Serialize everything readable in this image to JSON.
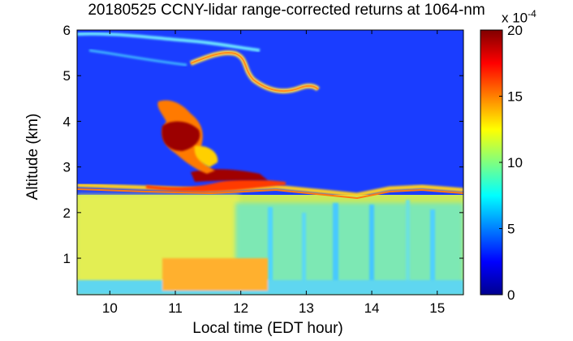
{
  "chart_data": {
    "type": "heatmap",
    "title": "20180525 CCNY-lidar range-corrected returns at 1064-nm",
    "xlabel": "Local time (EDT hour)",
    "ylabel": "Altitude (km)",
    "xlim": [
      9.5,
      15.4
    ],
    "ylim": [
      0.2,
      6.0
    ],
    "x_ticks": [
      "10",
      "11",
      "12",
      "13",
      "14",
      "15"
    ],
    "y_ticks": [
      "1",
      "2",
      "3",
      "4",
      "5",
      "6"
    ],
    "colorbar": {
      "min": 0,
      "max": 20,
      "ticks": [
        "0",
        "5",
        "10",
        "15",
        "20"
      ],
      "exponent_label": "x 10",
      "exponent": "-4",
      "colormap": "jet"
    },
    "features": [
      {
        "name": "boundary layer",
        "x_range": [
          9.5,
          15.4
        ],
        "altitude_km": [
          0.2,
          2.4
        ],
        "value": 9
      },
      {
        "name": "boundary layer top",
        "x_range": [
          9.5,
          15.4
        ],
        "altitude_km": [
          2.3,
          2.6
        ],
        "value": 14
      },
      {
        "name": "elevated aerosol layer",
        "x_range": [
          10.6,
          12.6
        ],
        "altitude_km": [
          2.5,
          4.4
        ],
        "value": 20
      },
      {
        "name": "upper layer",
        "x_range": [
          11.3,
          13.2
        ],
        "altitude_km": [
          4.6,
          5.5
        ],
        "value": 12
      },
      {
        "name": "thin upper layer",
        "x_range": [
          9.5,
          11.0
        ],
        "altitude_km": [
          5.5,
          6.0
        ],
        "value": 10
      }
    ]
  }
}
